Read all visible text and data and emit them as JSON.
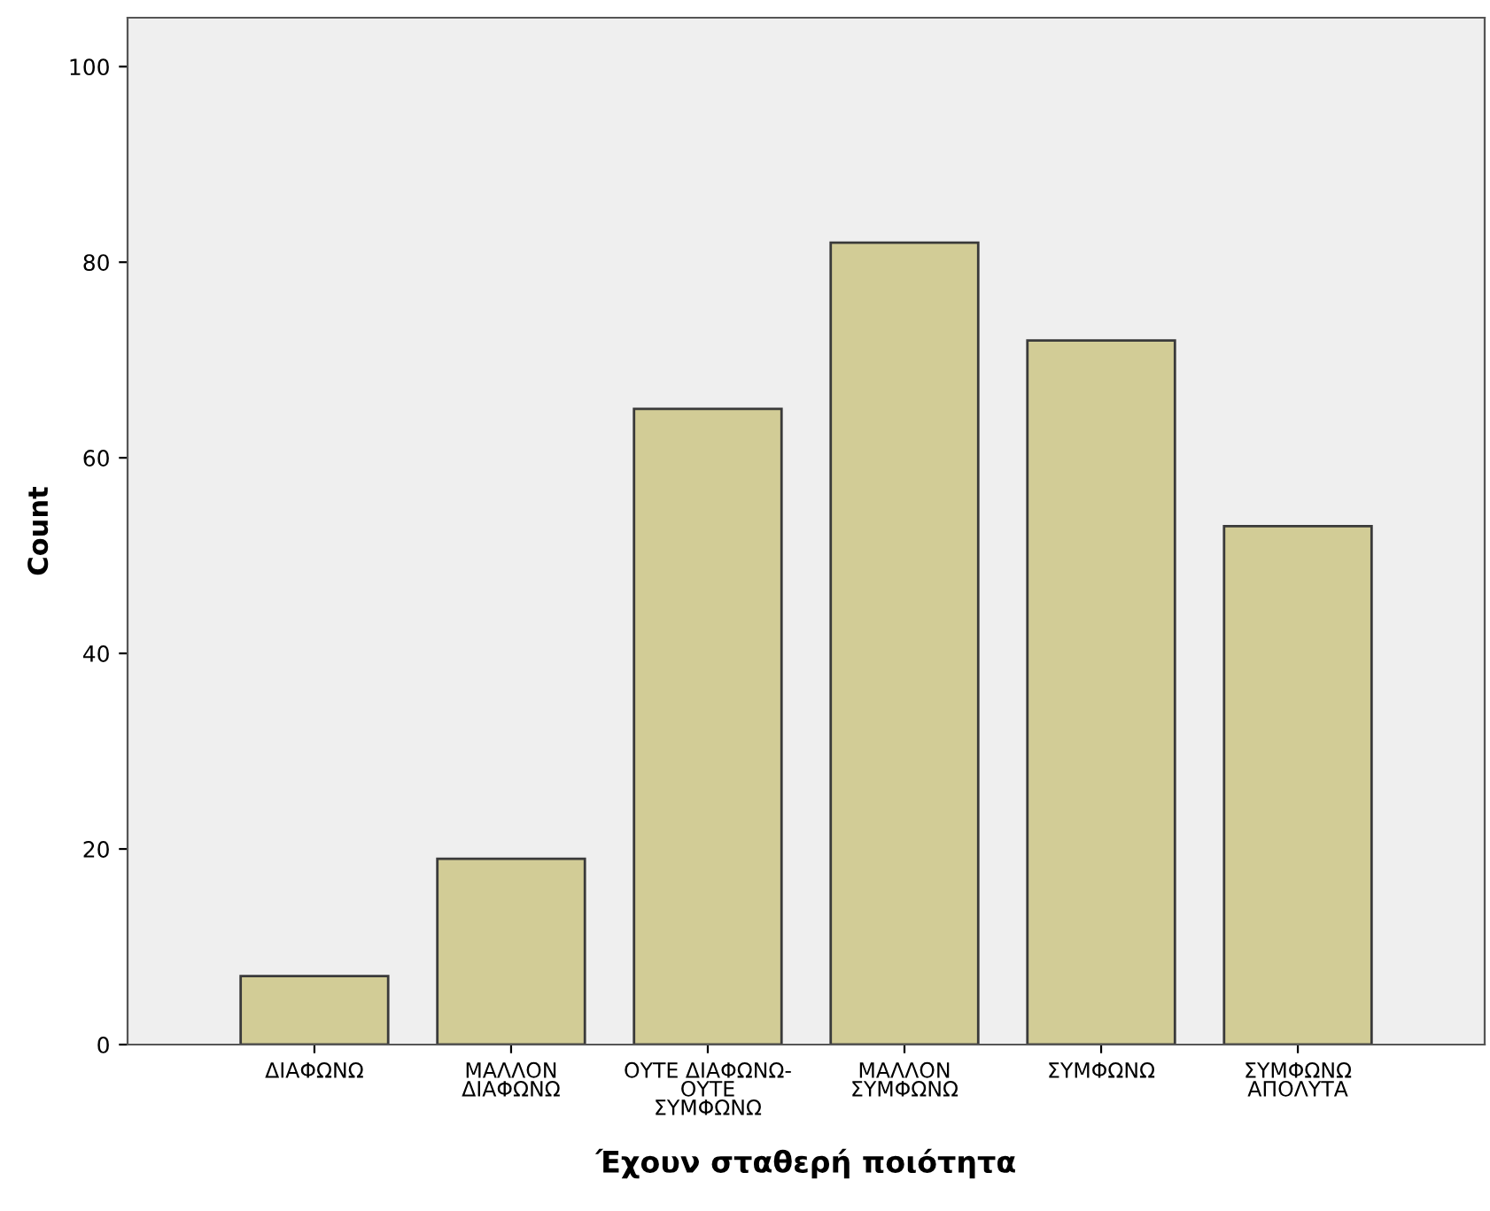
{
  "chart_data": {
    "type": "bar",
    "xlabel": "Έχουν σταθερή ποιότητα",
    "ylabel": "Count",
    "categories": [
      "ΔΙΑΦΩΝΩ",
      "ΜΑΛΛΟΝ\nΔΙΑΦΩΝΩ",
      "ΟΥΤΕ ΔΙΑΦΩΝΩ-\nΟΥΤΕ\nΣΥΜΦΩΝΩ",
      "ΜΑΛΛΟΝ\nΣΥΜΦΩΝΩ",
      "ΣΥΜΦΩΝΩ",
      "ΣΥΜΦΩΝΩ\nΑΠΟΛΥΤΑ"
    ],
    "values": [
      7,
      19,
      65,
      82,
      72,
      53
    ],
    "color": "#d2cc96",
    "ylim": [
      0,
      105
    ],
    "yticks": [
      0,
      20,
      40,
      60,
      80,
      100
    ],
    "grid": false
  }
}
